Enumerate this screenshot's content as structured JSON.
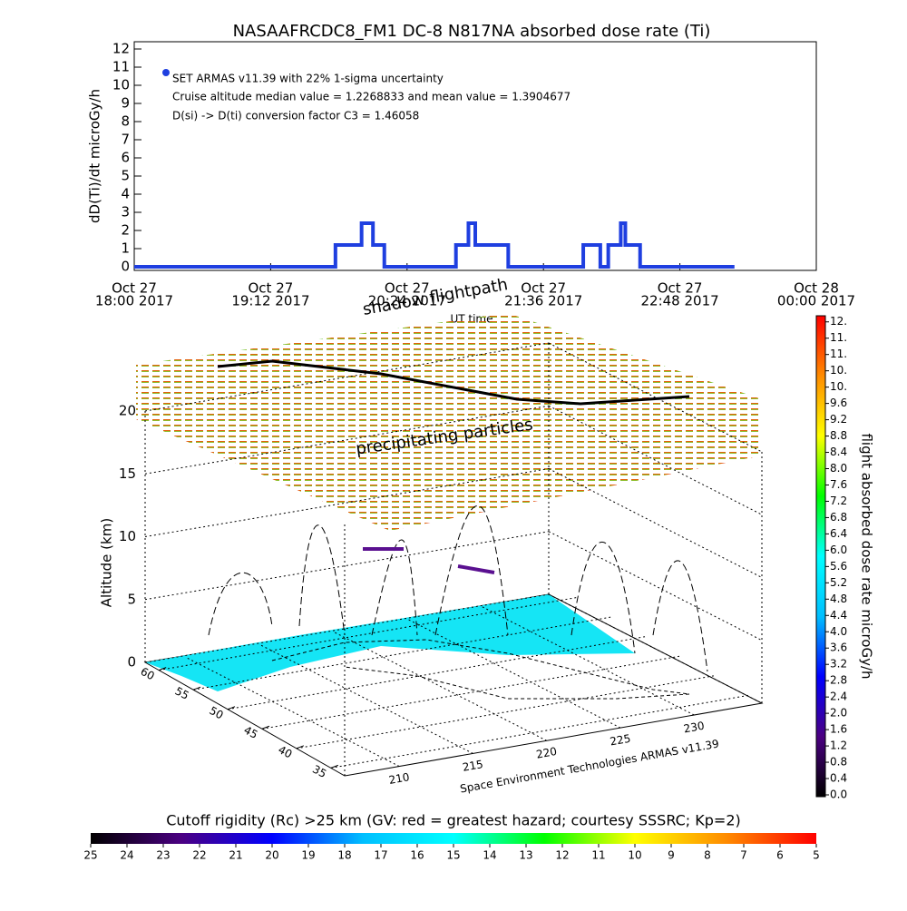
{
  "chart_data": [
    {
      "type": "line",
      "title": "NASAAFRCDC8_FM1 DC-8   N817NA absorbed dose rate (Ti)",
      "y_label": "dD(Ti)/dt microGy/h",
      "x_label": "UT time",
      "annotations": [
        "Cruise altitude median value = 1.2268833 and mean value = 1.3904677",
        "D(si) -> D(ti) conversion factor C3 = 1.46058"
      ],
      "xlim": [
        18,
        24
      ],
      "xticks": [
        {
          "value": 18,
          "label": [
            "Oct 27",
            "18:00 2017"
          ]
        },
        {
          "value": 19.2,
          "label": [
            "Oct 27",
            "19:12 2017"
          ]
        },
        {
          "value": 20.4,
          "label": [
            "Oct 27",
            "20:24 2017"
          ]
        },
        {
          "value": 21.6,
          "label": [
            "Oct 27",
            "21:36 2017"
          ]
        },
        {
          "value": 22.8,
          "label": [
            "Oct 27",
            "22:48 2017"
          ]
        },
        {
          "value": 24,
          "label": [
            "Oct 28",
            "00:00 2017"
          ]
        }
      ],
      "ylim": [
        -0.2,
        12.4
      ],
      "yticks": [
        0,
        1,
        2,
        3,
        4,
        5,
        6,
        7,
        8,
        9,
        10,
        11,
        12
      ],
      "x": [
        18,
        19.77,
        19.77,
        20.0,
        20.0,
        20.1,
        20.1,
        20.2,
        20.2,
        20.83,
        20.83,
        20.94,
        20.94,
        21.0,
        21.0,
        21.29,
        21.29,
        21.95,
        21.95,
        22.1,
        22.1,
        22.17,
        22.17,
        22.28,
        22.28,
        22.32,
        22.32,
        22.45,
        22.45,
        23.28
      ],
      "series": [
        {
          "name": "SET ARMAS v11.39 with 22% 1-sigma uncertainty",
          "color": "#1f3fe0",
          "values": [
            0,
            0,
            1.2,
            1.2,
            2.4,
            2.4,
            1.2,
            1.2,
            0,
            0,
            1.2,
            1.2,
            2.4,
            2.4,
            1.2,
            1.2,
            0,
            0,
            1.2,
            1.2,
            0,
            0,
            1.2,
            1.2,
            2.4,
            2.4,
            1.2,
            1.2,
            0,
            0
          ]
        }
      ]
    },
    {
      "type": "surface3d",
      "z_label": "Altitude (km)",
      "zlim": [
        0,
        20
      ],
      "zticks": [
        0,
        5,
        10,
        15,
        20
      ],
      "lat_ticks": [
        60,
        55,
        50,
        45,
        40,
        35
      ],
      "latlim": [
        62,
        33
      ],
      "lon_ticks": [
        210,
        215,
        220,
        225,
        230
      ],
      "lonlim": [
        206.3,
        234.6
      ],
      "annotations": [
        "shadow flightpath",
        "precipitating particles",
        "Space Environment Technologies ARMAS v11.39"
      ],
      "colorbar": {
        "label": "flight absorbed dose rate microGy/h",
        "lim": [
          0,
          11.75
        ],
        "colors": [
          "#000000",
          "#4b0082",
          "#0000ff",
          "#00bfff",
          "#00ffff",
          "#00ff00",
          "#ffff00",
          "#ff8c00",
          "#ff0000"
        ],
        "ticks": [
          {
            "value": 0,
            "label": "0.0"
          },
          0.4,
          0.8,
          1.2,
          1.6,
          {
            "value": 2,
            "label": "2.0"
          },
          2.4,
          2.8,
          3.2,
          3.6,
          {
            "value": 4,
            "label": "4.0"
          },
          4.4,
          4.8,
          5.2,
          5.6,
          {
            "value": 6,
            "label": "6.0"
          },
          6.4,
          6.8,
          7.2,
          7.6,
          {
            "value": 8,
            "label": "8.0"
          },
          8.4,
          8.8,
          9.2,
          9.6,
          {
            "value": 10,
            "label": "10."
          },
          {
            "value": 10.4,
            "label": "10."
          },
          {
            "value": 10.8,
            "label": "11."
          },
          {
            "value": 11.2,
            "label": "11."
          },
          {
            "value": 11.6,
            "label": "12."
          }
        ]
      }
    },
    {
      "type": "colorbar",
      "title": "Cutoff rigidity (Rc) >25 km (GV: red = greatest hazard; courtesy SSSRC; Kp=2)",
      "xlim": [
        25,
        5
      ],
      "xticks": [
        25,
        24,
        23,
        22,
        21,
        20,
        19,
        18,
        17,
        16,
        15,
        14,
        13,
        12,
        11,
        10,
        9,
        8,
        7,
        6,
        5
      ],
      "colors": [
        "#000000",
        "#4b0082",
        "#0000ff",
        "#00bfff",
        "#00ffff",
        "#00ff00",
        "#ffff00",
        "#ff8c00",
        "#ff0000"
      ]
    }
  ]
}
